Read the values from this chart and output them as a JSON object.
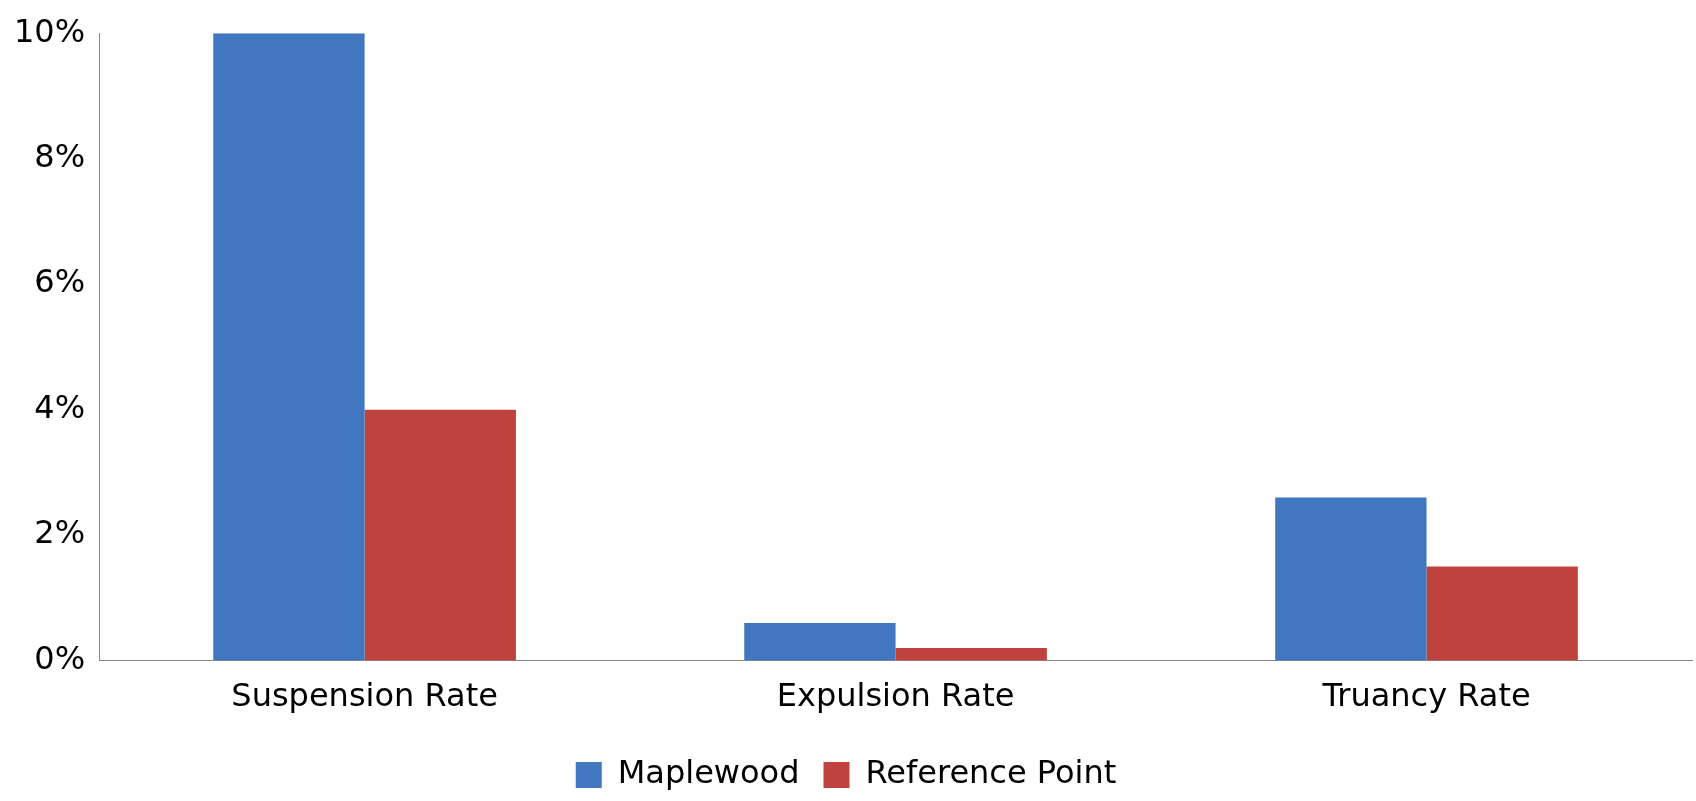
{
  "chart_data": {
    "type": "bar",
    "categories": [
      "Suspension Rate",
      "Expulsion Rate",
      "Truancy Rate"
    ],
    "series": [
      {
        "name": "Maplewood",
        "color": "#4177c0",
        "values": [
          10,
          0.6,
          2.6
        ]
      },
      {
        "name": "Reference Point",
        "color": "#c0423f",
        "values": [
          4,
          0.2,
          1.5
        ]
      }
    ],
    "ylim": [
      0,
      10
    ],
    "yticks": [
      {
        "value": 0,
        "label": "0%"
      },
      {
        "value": 2,
        "label": "2%"
      },
      {
        "value": 4,
        "label": "4%"
      },
      {
        "value": 6,
        "label": "6%"
      },
      {
        "value": 8,
        "label": "8%"
      },
      {
        "value": 10,
        "label": "10%"
      }
    ],
    "grid": false,
    "legend": "bottom"
  }
}
